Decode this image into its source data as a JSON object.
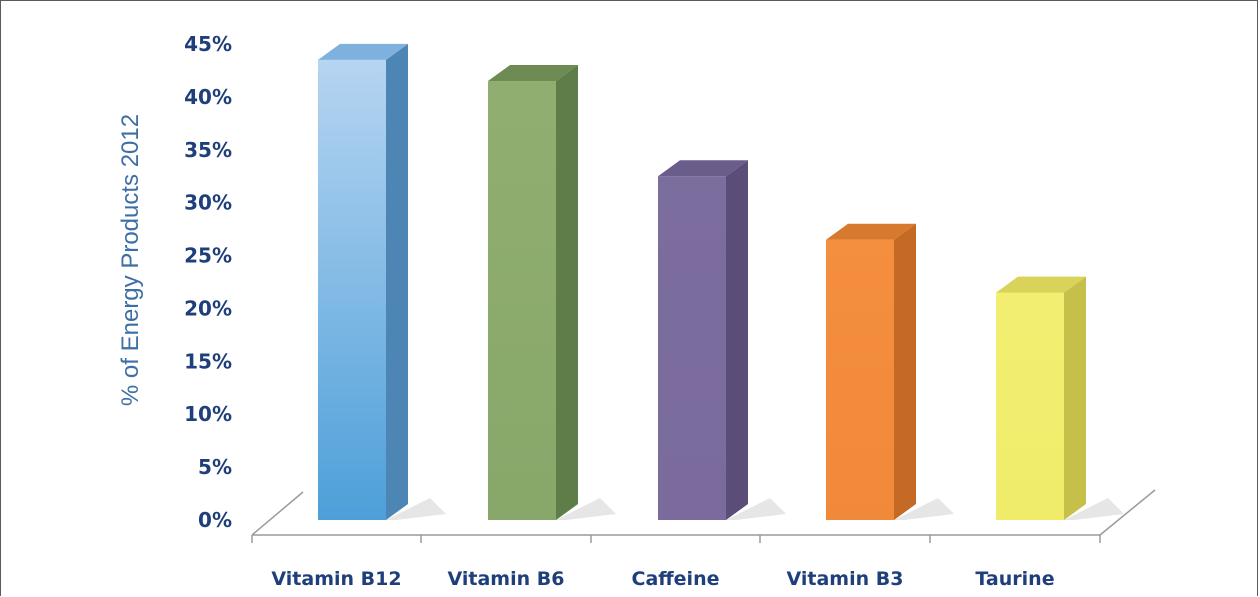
{
  "chart_data": {
    "type": "bar",
    "title": "",
    "xlabel": "",
    "ylabel": "% of Energy Products 2012",
    "categories": [
      "Vitamin B12",
      "Vitamin B6",
      "Caffeine",
      "Vitamin B3",
      "Taurine"
    ],
    "values": [
      43.5,
      41.5,
      32.5,
      26.5,
      21.5
    ],
    "ylim": [
      0,
      45
    ],
    "y_ticks": [
      "0%",
      "5%",
      "10%",
      "15%",
      "20%",
      "25%",
      "30%",
      "35%",
      "40%",
      "45%"
    ],
    "grid": false,
    "legend": "none",
    "style": "3d-bar",
    "colors": {
      "Vitamin B12": {
        "front_top": "#b6d5f1",
        "front_bottom": "#4d9fd9",
        "side": "#4d86b5",
        "top": "#7fb1de"
      },
      "Vitamin B6": {
        "front_top": "#90ae70",
        "front_bottom": "#87a86a",
        "side": "#5e7d48",
        "top": "#6d8b52"
      },
      "Caffeine": {
        "front_top": "#7c6d9f",
        "front_bottom": "#7a6b9c",
        "side": "#5a4d78",
        "top": "#6a5d8b"
      },
      "Vitamin B3": {
        "front_top": "#f48f3f",
        "front_bottom": "#f1893a",
        "side": "#c46a25",
        "top": "#d77a30"
      },
      "Taurine": {
        "front_top": "#f2ee72",
        "front_bottom": "#f0ec6a",
        "side": "#c6bf4a",
        "top": "#d9d35a"
      }
    }
  }
}
